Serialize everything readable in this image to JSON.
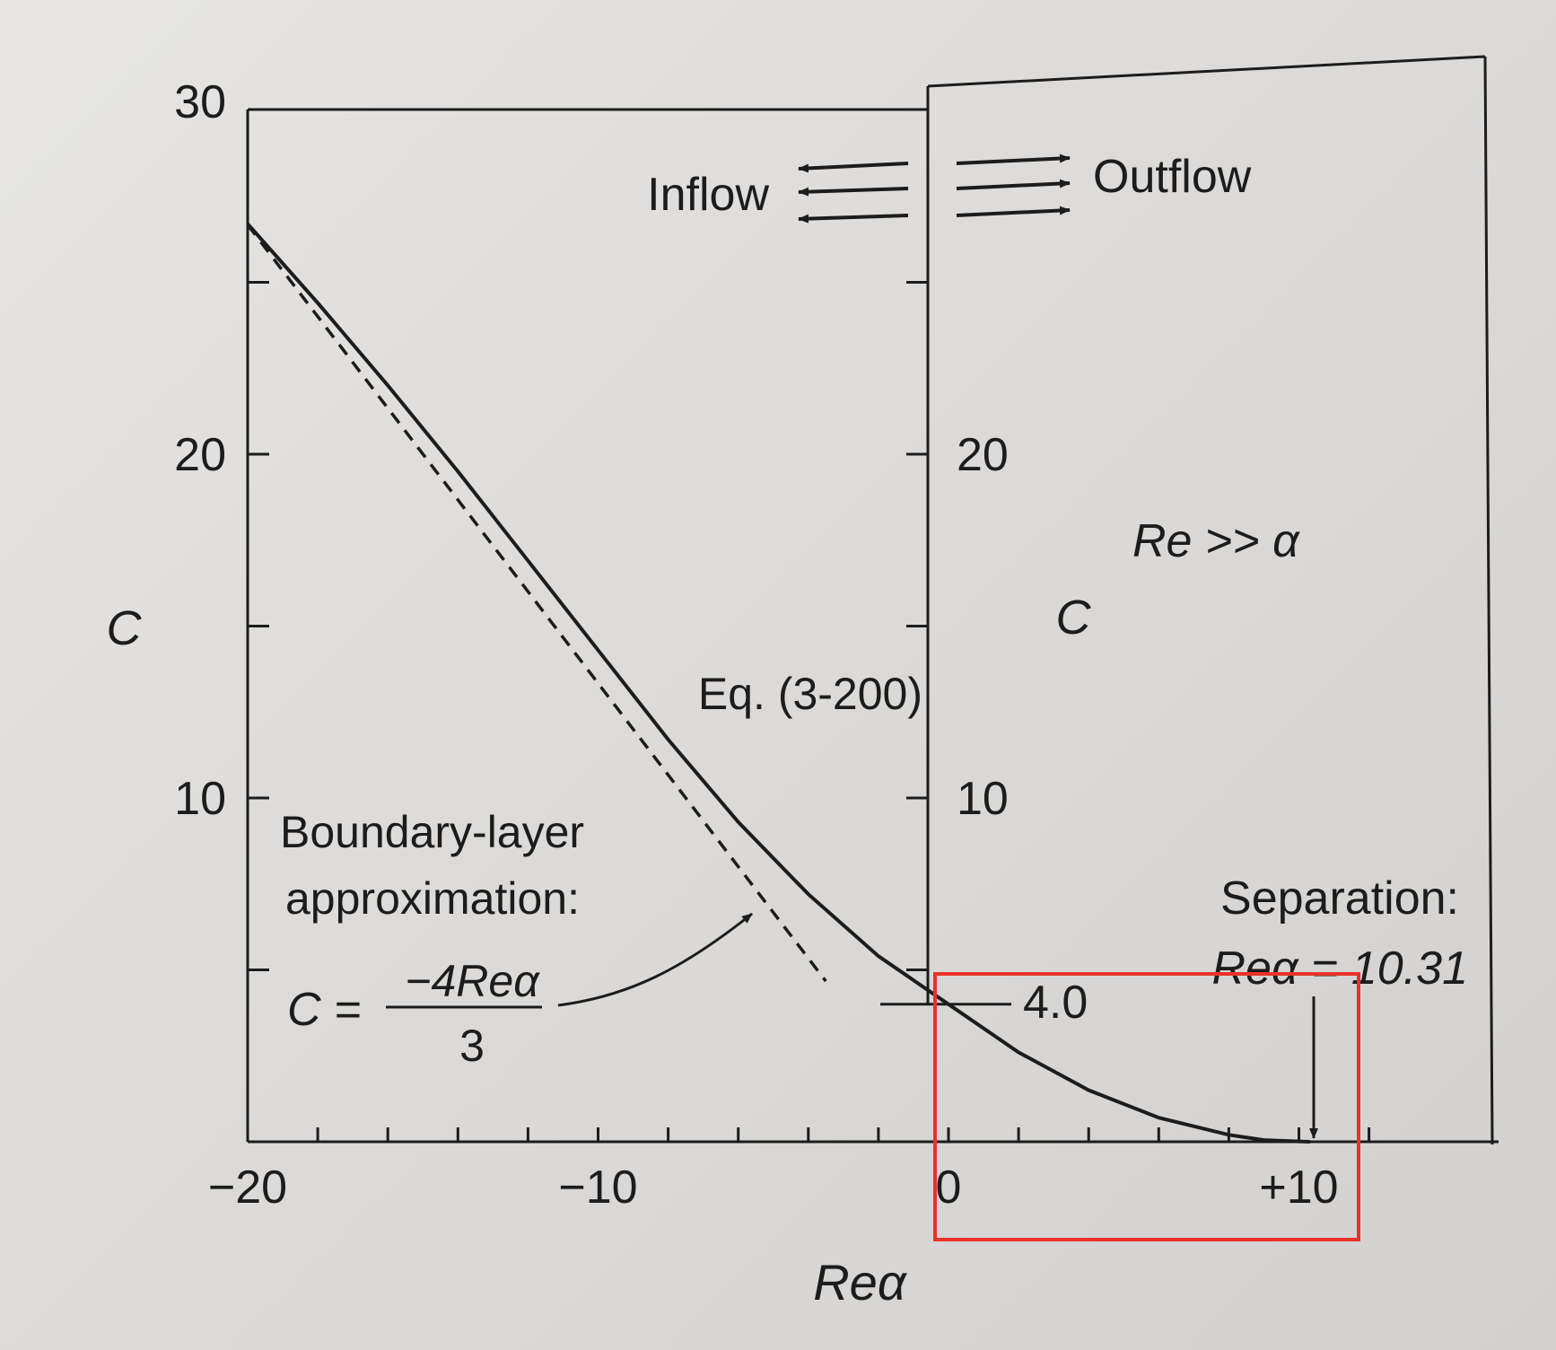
{
  "chart_data": {
    "type": "line",
    "xlabel": "Reα",
    "ylabel": "C",
    "xlim": [
      -20,
      13.5
    ],
    "ylim": [
      0,
      30
    ],
    "x_ticks": [
      -20,
      -10,
      0,
      10
    ],
    "x_tick_labels": [
      "−20",
      "−10",
      "0",
      "+10"
    ],
    "y_ticks_left": [
      10,
      20,
      30
    ],
    "y_ticks_right": [
      10,
      20
    ],
    "inset_ylabel": "C",
    "series": [
      {
        "style": "solid",
        "x": [
          -20,
          -18,
          -16,
          -14,
          -12,
          -10,
          -8,
          -6,
          -4,
          -2,
          0,
          2,
          4,
          6,
          8,
          9,
          10,
          10.31
        ],
        "y": [
          26.7,
          24.4,
          22.0,
          19.5,
          16.9,
          14.3,
          11.7,
          9.3,
          7.2,
          5.4,
          4.0,
          2.6,
          1.5,
          0.7,
          0.2,
          0.05,
          0.01,
          0.0
        ]
      },
      {
        "style": "dashed",
        "x": [
          -20,
          -3.5
        ],
        "y": [
          26.67,
          4.67
        ]
      }
    ],
    "annotations": {
      "inflow": "Inflow",
      "outflow": "Outflow",
      "equation": "Eq. (3-200)",
      "condition": "Re >> α",
      "bl_line1": "Boundary-layer",
      "bl_line2": "approximation:",
      "c_equals": "C =",
      "formula_num": "−4Reα",
      "formula_den": "3",
      "value_at_zero": "4.0",
      "separation": "Separation:",
      "separation_value": "Reα = 10.31"
    }
  },
  "highlight": {
    "color": "#e8322a"
  }
}
